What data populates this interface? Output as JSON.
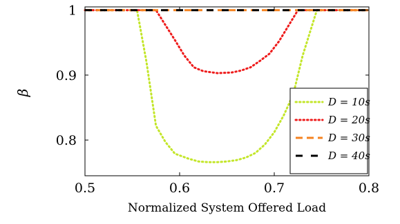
{
  "chart_data": {
    "type": "line",
    "title": "",
    "xlabel": "Normalized System Offered Load",
    "ylabel": "β",
    "xlim": [
      0.5,
      0.8
    ],
    "ylim": [
      0.745,
      1.005
    ],
    "xticks": [
      0.5,
      0.6,
      0.7,
      0.8
    ],
    "xtick_labels": [
      "0.5",
      "0.6",
      "0.7",
      "0.8"
    ],
    "yticks": [
      0.8,
      0.9,
      1.0
    ],
    "ytick_labels": [
      "0.8",
      "0.9",
      "1"
    ],
    "grid": false,
    "legend_position": "bottom-right",
    "series": [
      {
        "name": "D = 10s",
        "color": "#c3e62a",
        "line_style": "dotted",
        "x": [
          0.5,
          0.51,
          0.52,
          0.53,
          0.54,
          0.555,
          0.565,
          0.575,
          0.585,
          0.595,
          0.61,
          0.62,
          0.63,
          0.64,
          0.65,
          0.66,
          0.67,
          0.68,
          0.69,
          0.7,
          0.71,
          0.72,
          0.73,
          0.745,
          0.76,
          0.78,
          0.8
        ],
        "y": [
          1.0,
          1.0,
          1.0,
          1.0,
          1.0,
          1.0,
          0.92,
          0.822,
          0.797,
          0.779,
          0.771,
          0.767,
          0.766,
          0.766,
          0.767,
          0.769,
          0.773,
          0.78,
          0.793,
          0.812,
          0.838,
          0.87,
          0.93,
          1.0,
          1.0,
          1.0,
          1.0
        ]
      },
      {
        "name": "D = 20s",
        "color": "#ee1c1c",
        "line_style": "dotted",
        "x": [
          0.5,
          0.52,
          0.54,
          0.56,
          0.575,
          0.585,
          0.595,
          0.605,
          0.615,
          0.625,
          0.64,
          0.655,
          0.665,
          0.675,
          0.685,
          0.695,
          0.705,
          0.715,
          0.725,
          0.74,
          0.76,
          0.78,
          0.8
        ],
        "y": [
          1.0,
          1.0,
          1.0,
          1.0,
          1.0,
          0.977,
          0.954,
          0.93,
          0.912,
          0.906,
          0.903,
          0.904,
          0.907,
          0.912,
          0.922,
          0.933,
          0.952,
          0.976,
          1.0,
          1.0,
          1.0,
          1.0,
          1.0
        ]
      },
      {
        "name": "D = 30s",
        "color": "#f58220",
        "line_style": "dashed",
        "x": [
          0.5,
          0.8
        ],
        "y": [
          1.0,
          1.0
        ]
      },
      {
        "name": "D = 40s",
        "color": "#000000",
        "line_style": "dashed",
        "x": [
          0.5,
          0.8
        ],
        "y": [
          1.0,
          1.0
        ]
      }
    ],
    "legend": [
      {
        "text": "D = 10s"
      },
      {
        "text": "D = 20s"
      },
      {
        "text": "D = 30s"
      },
      {
        "text": "D = 40s"
      }
    ]
  }
}
